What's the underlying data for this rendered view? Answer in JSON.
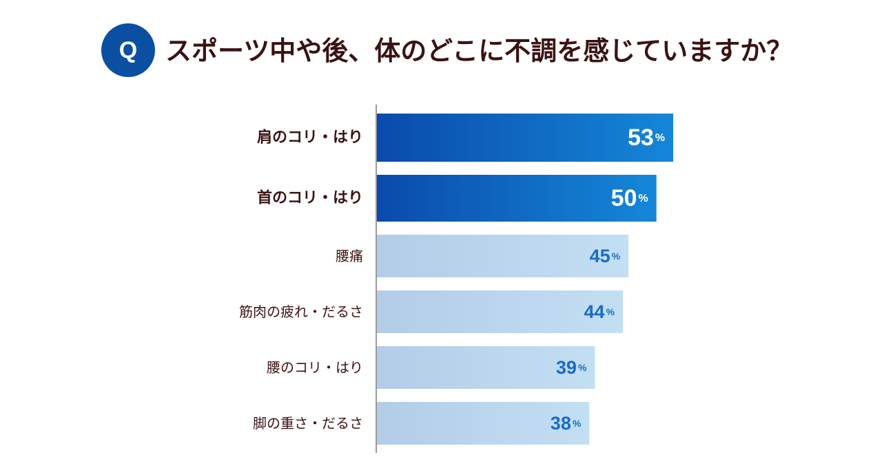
{
  "question": {
    "badge": "Q",
    "text": "スポーツ中や後、体のどこに不調を感じていますか？"
  },
  "colors": {
    "badge": "#0b4fa3",
    "title_text": "#3b1212",
    "highlight_bar_start": "#0a4aab",
    "highlight_bar_end": "#1587d8",
    "normal_bar_start": "#b3cce8",
    "normal_bar_end": "#c3dff3",
    "highlight_label": "#ffffff",
    "normal_label": "#1a6cc4"
  },
  "chart_data": {
    "type": "bar",
    "orientation": "horizontal",
    "categories": [
      "肩のコリ・はり",
      "首のコリ・はり",
      "腰痛",
      "筋肉の疲れ・だるさ",
      "腰のコリ・はり",
      "脚の重さ・だるさ"
    ],
    "values": [
      53,
      50,
      45,
      44,
      39,
      38
    ],
    "unit": "%",
    "highlighted": [
      true,
      true,
      false,
      false,
      false,
      false
    ],
    "title": "",
    "xlabel": "",
    "ylabel": "",
    "grid": false,
    "legend": "none"
  }
}
